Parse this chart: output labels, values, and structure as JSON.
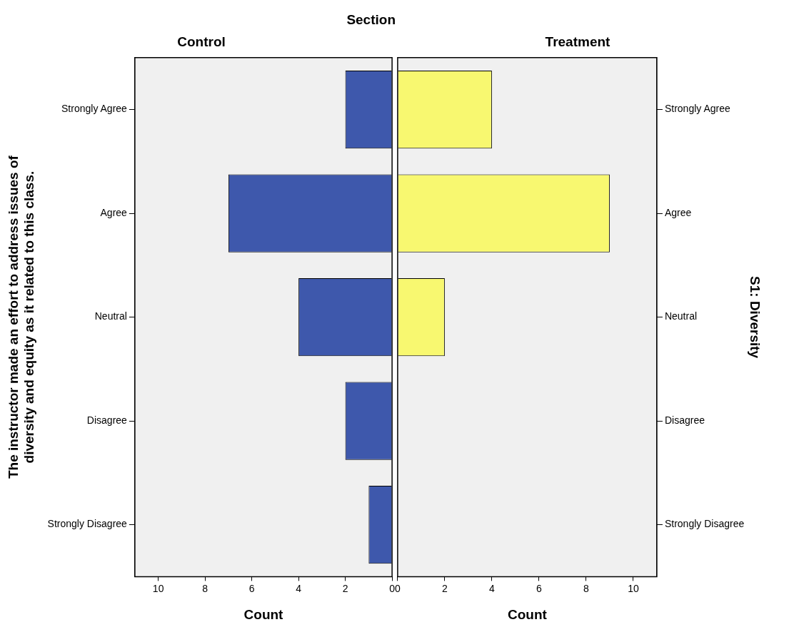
{
  "chart_data": [
    {
      "type": "bar",
      "orientation": "horizontal",
      "title": "Section",
      "subtitle": "Control",
      "xlabel": "Count",
      "ylabel": "The instructor made an effort to address issues of\ndiversity and equity as it related to this class.",
      "categories": [
        "Strongly Agree",
        "Agree",
        "Neutral",
        "Disagree",
        "Strongly Disagree"
      ],
      "values": [
        2,
        7,
        4,
        2,
        1
      ],
      "color": "#3e58ac",
      "xlim": [
        11,
        0
      ],
      "xticks": [
        10,
        8,
        6,
        4,
        2,
        0
      ],
      "grid": false,
      "legend": false
    },
    {
      "type": "bar",
      "orientation": "horizontal",
      "subtitle": "Treatment",
      "xlabel": "Count",
      "ylabel": "S1: Diversity",
      "categories": [
        "Strongly Agree",
        "Agree",
        "Neutral",
        "Disagree",
        "Strongly Disagree"
      ],
      "values": [
        4,
        9,
        2,
        0,
        0
      ],
      "color": "#f8f870",
      "xlim": [
        0,
        11
      ],
      "xticks": [
        0,
        2,
        4,
        6,
        8,
        10
      ],
      "grid": false,
      "legend": false
    }
  ]
}
